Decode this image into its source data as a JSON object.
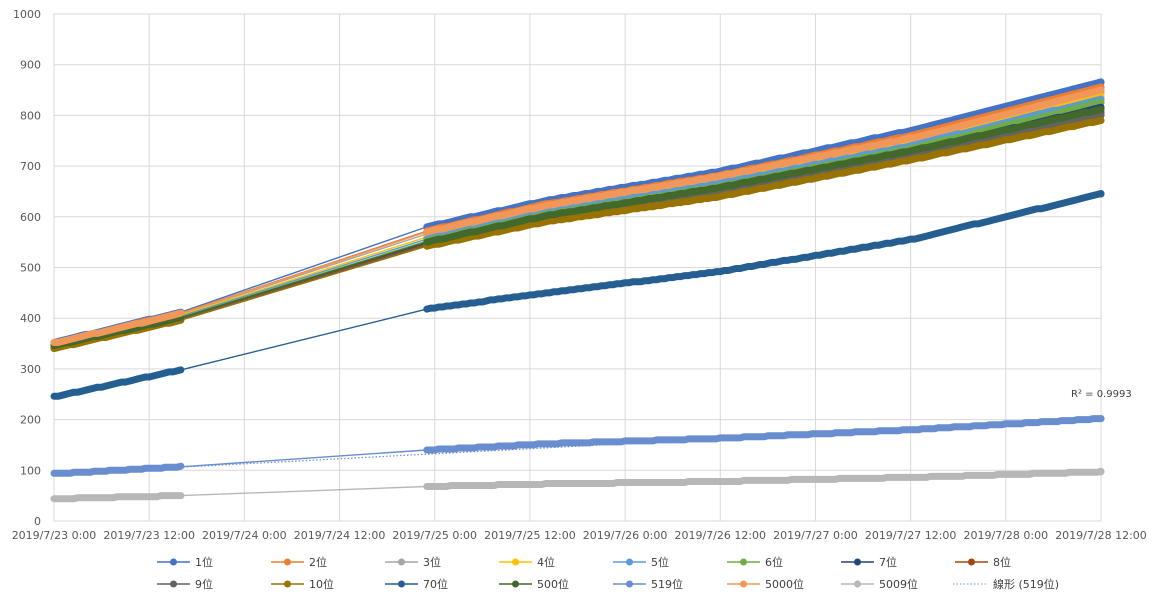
{
  "chart_data": {
    "type": "line",
    "x_ticks": [
      "2019/7/23 0:00",
      "2019/7/23 12:00",
      "2019/7/24 0:00",
      "2019/7/24 12:00",
      "2019/7/25 0:00",
      "2019/7/25 12:00",
      "2019/7/26 0:00",
      "2019/7/26 12:00",
      "2019/7/27 0:00",
      "2019/7/27 12:00",
      "2019/7/28 0:00",
      "2019/7/28 12:00"
    ],
    "x_hour_range": [
      0,
      132
    ],
    "ylim": [
      0,
      1000
    ],
    "y_ticks": [
      "0",
      "100",
      "200",
      "300",
      "400",
      "500",
      "600",
      "700",
      "800",
      "900",
      "1000"
    ],
    "grid": true,
    "legend_position": "bottom",
    "annotation": "R² = 0.9993",
    "series": [
      {
        "name": "1位",
        "color": "#4472C4",
        "start": 352,
        "pts": [
          [
            "2019/7/23 0:00",
            352
          ],
          [
            "2019/7/23 16:00",
            412
          ],
          [
            "2019/7/24 23:00",
            580
          ],
          [
            "2019/7/25 14:00",
            632
          ],
          [
            "2019/7/26 12:00",
            690
          ],
          [
            "2019/7/27 12:00",
            770
          ],
          [
            "2019/7/28 12:00",
            865
          ]
        ]
      },
      {
        "name": "2位",
        "color": "#ED7D31",
        "start": 350,
        "pts": [
          [
            "2019/7/23 0:00",
            350
          ],
          [
            "2019/7/23 16:00",
            410
          ],
          [
            "2019/7/24 23:00",
            572
          ],
          [
            "2019/7/25 14:00",
            625
          ],
          [
            "2019/7/26 12:00",
            682
          ],
          [
            "2019/7/27 12:00",
            760
          ],
          [
            "2019/7/28 12:00",
            856
          ]
        ]
      },
      {
        "name": "3位",
        "color": "#A5A5A5",
        "start": 349,
        "pts": [
          [
            "2019/7/23 0:00",
            349
          ],
          [
            "2019/7/23 16:00",
            408
          ],
          [
            "2019/7/24 23:00",
            566
          ],
          [
            "2019/7/25 14:00",
            620
          ],
          [
            "2019/7/26 12:00",
            678
          ],
          [
            "2019/7/27 12:00",
            752
          ],
          [
            "2019/7/28 12:00",
            845
          ]
        ]
      },
      {
        "name": "4位",
        "color": "#FFC000",
        "start": 348,
        "pts": [
          [
            "2019/7/23 0:00",
            348
          ],
          [
            "2019/7/23 16:00",
            406
          ],
          [
            "2019/7/24 23:00",
            560
          ],
          [
            "2019/7/25 14:00",
            612
          ],
          [
            "2019/7/26 12:00",
            670
          ],
          [
            "2019/7/27 12:00",
            745
          ],
          [
            "2019/7/28 12:00",
            838
          ]
        ]
      },
      {
        "name": "5位",
        "color": "#5B9BD5",
        "start": 347,
        "pts": [
          [
            "2019/7/23 0:00",
            347
          ],
          [
            "2019/7/23 16:00",
            404
          ],
          [
            "2019/7/24 23:00",
            556
          ],
          [
            "2019/7/25 14:00",
            608
          ],
          [
            "2019/7/26 12:00",
            666
          ],
          [
            "2019/7/27 12:00",
            740
          ],
          [
            "2019/7/28 12:00",
            832
          ]
        ]
      },
      {
        "name": "6位",
        "color": "#70AD47",
        "start": 346,
        "pts": [
          [
            "2019/7/23 0:00",
            346
          ],
          [
            "2019/7/23 16:00",
            402
          ],
          [
            "2019/7/24 23:00",
            552
          ],
          [
            "2019/7/25 14:00",
            604
          ],
          [
            "2019/7/26 12:00",
            660
          ],
          [
            "2019/7/27 12:00",
            734
          ],
          [
            "2019/7/28 12:00",
            825
          ]
        ]
      },
      {
        "name": "7位",
        "color": "#264478",
        "start": 345,
        "pts": [
          [
            "2019/7/23 0:00",
            345
          ],
          [
            "2019/7/23 16:00",
            400
          ],
          [
            "2019/7/24 23:00",
            548
          ],
          [
            "2019/7/25 14:00",
            600
          ],
          [
            "2019/7/26 12:00",
            655
          ],
          [
            "2019/7/27 12:00",
            728
          ],
          [
            "2019/7/28 12:00",
            815
          ]
        ]
      },
      {
        "name": "8位",
        "color": "#9E480E",
        "start": 344,
        "pts": [
          [
            "2019/7/23 0:00",
            344
          ],
          [
            "2019/7/23 16:00",
            399
          ],
          [
            "2019/7/24 23:00",
            546
          ],
          [
            "2019/7/25 14:00",
            596
          ],
          [
            "2019/7/26 12:00",
            651
          ],
          [
            "2019/7/27 12:00",
            722
          ],
          [
            "2019/7/28 12:00",
            805
          ]
        ]
      },
      {
        "name": "9位",
        "color": "#636363",
        "start": 343,
        "pts": [
          [
            "2019/7/23 0:00",
            343
          ],
          [
            "2019/7/23 16:00",
            398
          ],
          [
            "2019/7/24 23:00",
            544
          ],
          [
            "2019/7/25 14:00",
            593
          ],
          [
            "2019/7/26 12:00",
            648
          ],
          [
            "2019/7/27 12:00",
            718
          ],
          [
            "2019/7/28 12:00",
            800
          ]
        ]
      },
      {
        "name": "10位",
        "color": "#997300",
        "start": 340,
        "pts": [
          [
            "2019/7/23 0:00",
            340
          ],
          [
            "2019/7/23 16:00",
            396
          ],
          [
            "2019/7/24 23:00",
            542
          ],
          [
            "2019/7/25 14:00",
            590
          ],
          [
            "2019/7/26 12:00",
            640
          ],
          [
            "2019/7/27 12:00",
            712
          ],
          [
            "2019/7/28 12:00",
            790
          ]
        ]
      },
      {
        "name": "70位",
        "color": "#255E91",
        "start": 245,
        "pts": [
          [
            "2019/7/23 0:00",
            245
          ],
          [
            "2019/7/23 16:00",
            298
          ],
          [
            "2019/7/24 23:00",
            418
          ],
          [
            "2019/7/25 14:00",
            450
          ],
          [
            "2019/7/26 12:00",
            492
          ],
          [
            "2019/7/27 12:00",
            555
          ],
          [
            "2019/7/28 12:00",
            645
          ]
        ]
      },
      {
        "name": "500位",
        "color": "#43682B",
        "start": 346,
        "pts": [
          [
            "2019/7/23 0:00",
            346
          ],
          [
            "2019/7/23 16:00",
            401
          ],
          [
            "2019/7/24 23:00",
            550
          ],
          [
            "2019/7/25 14:00",
            602
          ],
          [
            "2019/7/26 12:00",
            658
          ],
          [
            "2019/7/27 12:00",
            730
          ],
          [
            "2019/7/28 12:00",
            812
          ]
        ]
      },
      {
        "name": "519位",
        "color": "#698ED0",
        "start": 93,
        "pts": [
          [
            "2019/7/23 0:00",
            93
          ],
          [
            "2019/7/23 16:00",
            107
          ],
          [
            "2019/7/24 23:00",
            140
          ],
          [
            "2019/7/25 14:00",
            152
          ],
          [
            "2019/7/26 12:00",
            163
          ],
          [
            "2019/7/27 12:00",
            180
          ],
          [
            "2019/7/28 12:00",
            202
          ]
        ]
      },
      {
        "name": "5000位",
        "color": "#F1975A",
        "start": 351,
        "pts": [
          [
            "2019/7/23 0:00",
            351
          ],
          [
            "2019/7/23 16:00",
            409
          ],
          [
            "2019/7/24 23:00",
            570
          ],
          [
            "2019/7/25 14:00",
            622
          ],
          [
            "2019/7/26 12:00",
            680
          ],
          [
            "2019/7/27 12:00",
            755
          ],
          [
            "2019/7/28 12:00",
            850
          ]
        ]
      },
      {
        "name": "5009位",
        "color": "#B7B7B7",
        "start": 44,
        "pts": [
          [
            "2019/7/23 0:00",
            44
          ],
          [
            "2019/7/23 16:00",
            50
          ],
          [
            "2019/7/24 23:00",
            68
          ],
          [
            "2019/7/25 14:00",
            73
          ],
          [
            "2019/7/26 12:00",
            78
          ],
          [
            "2019/7/27 12:00",
            86
          ],
          [
            "2019/7/28 12:00",
            97
          ]
        ]
      }
    ],
    "trendline": {
      "name": "線形 (519位)",
      "color": "#698ED0",
      "style": "dotted"
    }
  }
}
